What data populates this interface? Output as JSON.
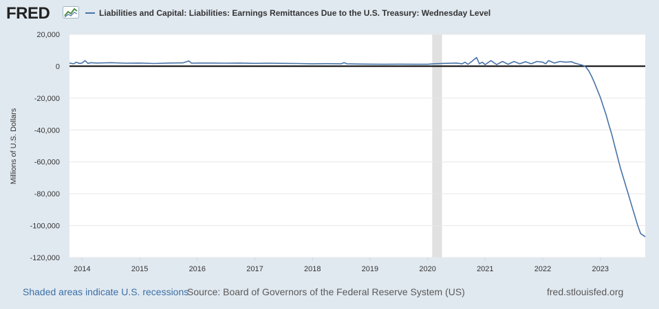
{
  "brand": {
    "logo_text": "FRED"
  },
  "legend": {
    "series_label": "Liabilities and Capital: Liabilities: Earnings Remittances Due to the U.S. Treasury: Wednesday Level"
  },
  "footer": {
    "recessions_link": "Shaded areas indicate U.S. recessions",
    "source": "Source: Board of Governors of the Federal Reserve System (US)",
    "site_url": "fred.stlouisfed.org"
  },
  "colors": {
    "background": "#e1e9f0",
    "plot_background": "#ffffff",
    "series_line": "#4572a7",
    "recession_shading": "#e1e1e1",
    "zero_line": "#000000",
    "link": "#3b6fa5"
  },
  "chart_data": {
    "type": "line",
    "title": "Liabilities and Capital: Liabilities: Earnings Remittances Due to the U.S. Treasury: Wednesday Level",
    "xlabel": "",
    "ylabel": "Millions of U.S. Dollars",
    "ylim": [
      -120000,
      20000
    ],
    "xlim": [
      2013.78,
      2023.78
    ],
    "yticks": [
      20000,
      0,
      -20000,
      -40000,
      -60000,
      -80000,
      -100000,
      -120000
    ],
    "ytick_labels": [
      "20,000",
      "0",
      "-20,000",
      "-40,000",
      "-60,000",
      "-80,000",
      "-100,000",
      "-120,000"
    ],
    "xticks": [
      2014,
      2015,
      2016,
      2017,
      2018,
      2019,
      2020,
      2021,
      2022,
      2023
    ],
    "xtick_labels": [
      "2014",
      "2015",
      "2016",
      "2017",
      "2018",
      "2019",
      "2020",
      "2021",
      "2022",
      "2023"
    ],
    "grid": true,
    "reference_line": 0,
    "recessions": [
      [
        2020.08,
        2020.25
      ]
    ],
    "series": [
      {
        "name": "Liabilities and Capital: Liabilities: Earnings Remittances Due to the U.S. Treasury: Wednesday Level",
        "x": [
          2013.78,
          2013.85,
          2013.9,
          2013.95,
          2014.0,
          2014.05,
          2014.1,
          2014.15,
          2014.25,
          2014.5,
          2014.75,
          2015.0,
          2015.25,
          2015.5,
          2015.75,
          2015.85,
          2015.9,
          2016.0,
          2016.25,
          2016.5,
          2016.75,
          2017.0,
          2017.25,
          2017.5,
          2017.75,
          2018.0,
          2018.25,
          2018.5,
          2018.55,
          2018.6,
          2018.75,
          2019.0,
          2019.25,
          2019.5,
          2019.75,
          2020.0,
          2020.1,
          2020.3,
          2020.5,
          2020.6,
          2020.65,
          2020.7,
          2020.75,
          2020.85,
          2020.9,
          2020.95,
          2021.0,
          2021.1,
          2021.2,
          2021.3,
          2021.4,
          2021.5,
          2021.6,
          2021.7,
          2021.8,
          2021.9,
          2022.0,
          2022.05,
          2022.1,
          2022.2,
          2022.3,
          2022.4,
          2022.5,
          2022.55,
          2022.6,
          2022.65,
          2022.7,
          2022.75,
          2022.8,
          2022.85,
          2022.9,
          2022.95,
          2023.0,
          2023.05,
          2023.1,
          2023.15,
          2023.2,
          2023.25,
          2023.3,
          2023.35,
          2023.4,
          2023.45,
          2023.5,
          2023.55,
          2023.6,
          2023.65,
          2023.7,
          2023.78
        ],
        "values": [
          2000,
          1500,
          2500,
          1800,
          2000,
          3500,
          1800,
          2200,
          2000,
          2200,
          1900,
          2000,
          1700,
          2000,
          2100,
          3300,
          1900,
          2000,
          2000,
          1900,
          2000,
          1800,
          1900,
          1800,
          1700,
          1500,
          1600,
          1500,
          2200,
          1500,
          1400,
          1300,
          1200,
          1300,
          1200,
          1200,
          1500,
          1800,
          2000,
          1500,
          2500,
          1200,
          2500,
          5500,
          1500,
          2500,
          1000,
          3500,
          1000,
          3000,
          1200,
          3000,
          1500,
          2800,
          1500,
          3000,
          2500,
          1500,
          3500,
          2000,
          3000,
          2500,
          2800,
          2000,
          1500,
          1000,
          500,
          -500,
          -3000,
          -6500,
          -10500,
          -15000,
          -19500,
          -25000,
          -30500,
          -37000,
          -43000,
          -50000,
          -57000,
          -64000,
          -70000,
          -76000,
          -82000,
          -88000,
          -94000,
          -100000,
          -105000,
          -107000
        ]
      }
    ]
  }
}
